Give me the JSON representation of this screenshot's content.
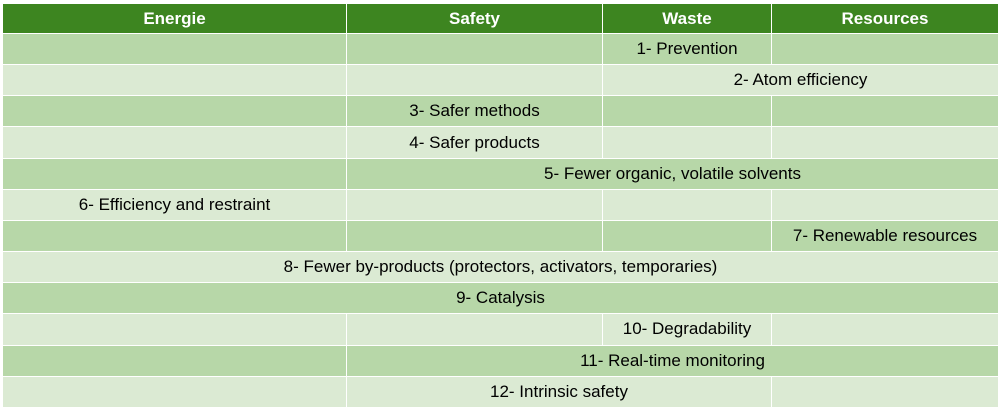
{
  "headers": [
    "Energie",
    "Safety",
    "Waste",
    "Resources"
  ],
  "rows": [
    {
      "shade": "dark",
      "cells": [
        {
          "text": "",
          "span": 1
        },
        {
          "text": "",
          "span": 1
        },
        {
          "text": "1- Prevention",
          "span": 1
        },
        {
          "text": "",
          "span": 1
        }
      ]
    },
    {
      "shade": "light",
      "cells": [
        {
          "text": "",
          "span": 1
        },
        {
          "text": "",
          "span": 1
        },
        {
          "text": "2- Atom efficiency",
          "span": 2
        }
      ]
    },
    {
      "shade": "dark",
      "cells": [
        {
          "text": "",
          "span": 1
        },
        {
          "text": "3- Safer methods",
          "span": 1
        },
        {
          "text": "",
          "span": 1
        },
        {
          "text": "",
          "span": 1
        }
      ]
    },
    {
      "shade": "light",
      "cells": [
        {
          "text": "",
          "span": 1
        },
        {
          "text": "4- Safer products",
          "span": 1
        },
        {
          "text": "",
          "span": 1
        },
        {
          "text": "",
          "span": 1
        }
      ]
    },
    {
      "shade": "dark",
      "cells": [
        {
          "text": "",
          "span": 1
        },
        {
          "text": "5- Fewer organic, volatile solvents",
          "span": 3
        }
      ]
    },
    {
      "shade": "light",
      "cells": [
        {
          "text": "6- Efficiency and restraint",
          "span": 1
        },
        {
          "text": "",
          "span": 1
        },
        {
          "text": "",
          "span": 1
        },
        {
          "text": "",
          "span": 1
        }
      ]
    },
    {
      "shade": "dark",
      "cells": [
        {
          "text": "",
          "span": 1
        },
        {
          "text": "",
          "span": 1
        },
        {
          "text": "",
          "span": 1
        },
        {
          "text": "7- Renewable resources",
          "span": 1
        }
      ]
    },
    {
      "shade": "light",
      "cells": [
        {
          "text": "8- Fewer by-products (protectors, activators, temporaries)",
          "span": 4
        }
      ]
    },
    {
      "shade": "dark",
      "cells": [
        {
          "text": "9- Catalysis",
          "span": 4
        }
      ]
    },
    {
      "shade": "light",
      "cells": [
        {
          "text": "",
          "span": 1
        },
        {
          "text": "",
          "span": 1
        },
        {
          "text": "10- Degradability",
          "span": 1
        },
        {
          "text": "",
          "span": 1
        }
      ]
    },
    {
      "shade": "dark",
      "cells": [
        {
          "text": "",
          "span": 1
        },
        {
          "text": "11- Real-time monitoring",
          "span": 3
        }
      ]
    },
    {
      "shade": "light",
      "cells": [
        {
          "text": "",
          "span": 1
        },
        {
          "text": "12- Intrinsic safety",
          "span": 2
        },
        {
          "text": "",
          "span": 1
        }
      ]
    }
  ]
}
